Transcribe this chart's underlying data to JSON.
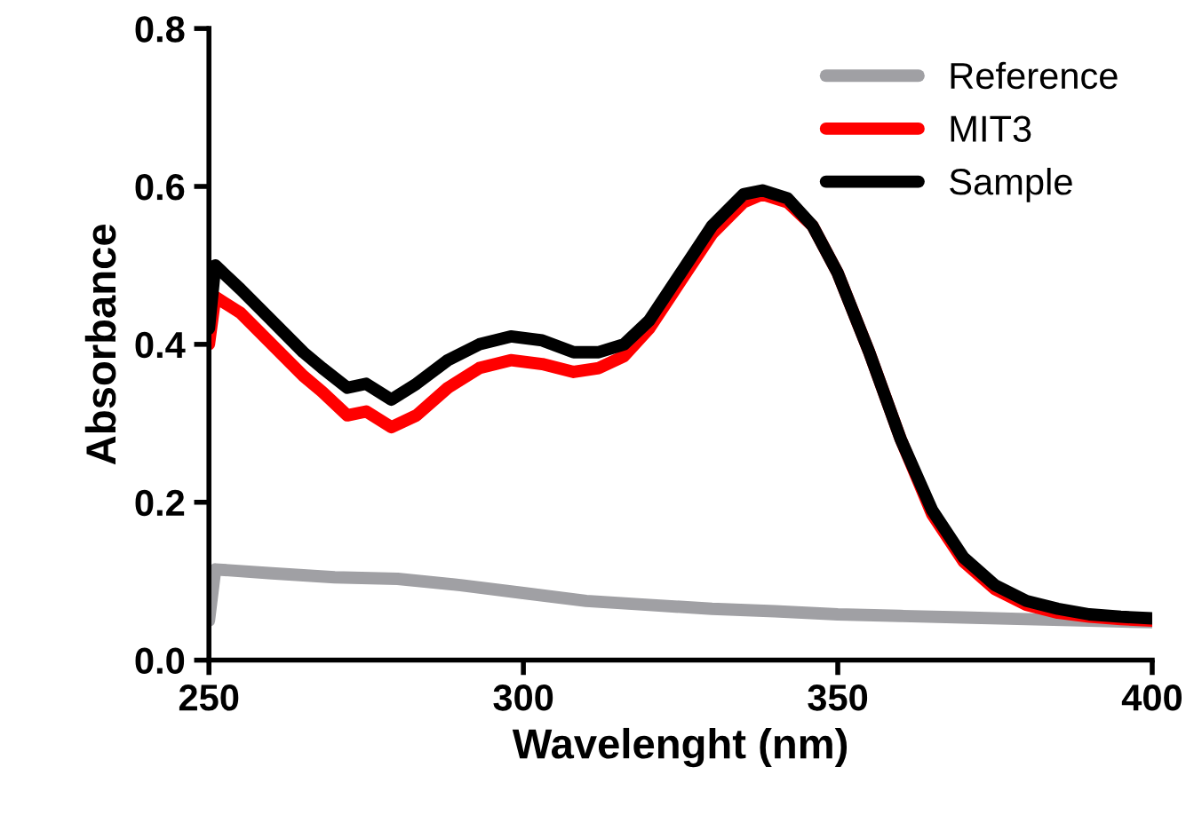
{
  "chart_data": {
    "type": "line",
    "xlabel": "Wavelenght (nm)",
    "ylabel": "Absorbance",
    "xlim": [
      250,
      400
    ],
    "ylim": [
      0,
      0.8
    ],
    "xticks": [
      250,
      300,
      350,
      400
    ],
    "yticks": [
      {
        "value": 0,
        "label": "0.0"
      },
      {
        "value": 0.2,
        "label": "0.2"
      },
      {
        "value": 0.4,
        "label": "0.4"
      },
      {
        "value": 0.6,
        "label": "0.6"
      },
      {
        "value": 0.8,
        "label": "0.8"
      }
    ],
    "grid": false,
    "legend": "top right",
    "marker": "none",
    "line_style": "solid",
    "series": [
      {
        "name": "Reference",
        "color": "#a0a0a4",
        "x": [
          250,
          251,
          260,
          270,
          280,
          290,
          300,
          310,
          320,
          330,
          340,
          350,
          360,
          370,
          380,
          390,
          400
        ],
        "values": [
          0.05,
          0.115,
          0.11,
          0.105,
          0.103,
          0.095,
          0.085,
          0.075,
          0.07,
          0.065,
          0.062,
          0.058,
          0.056,
          0.054,
          0.052,
          0.05,
          0.048
        ]
      },
      {
        "name": "MIT3",
        "color": "#ff0000",
        "x": [
          250,
          251,
          255,
          260,
          265,
          268,
          272,
          275,
          279,
          283,
          288,
          293,
          298,
          303,
          308,
          312,
          316,
          320,
          325,
          330,
          335,
          338,
          342,
          346,
          350,
          355,
          360,
          365,
          370,
          375,
          380,
          385,
          390,
          395,
          400
        ],
        "values": [
          0.4,
          0.46,
          0.44,
          0.4,
          0.36,
          0.34,
          0.31,
          0.315,
          0.295,
          0.31,
          0.345,
          0.37,
          0.38,
          0.375,
          0.365,
          0.37,
          0.385,
          0.42,
          0.48,
          0.54,
          0.58,
          0.59,
          0.58,
          0.55,
          0.49,
          0.39,
          0.28,
          0.185,
          0.125,
          0.09,
          0.07,
          0.06,
          0.055,
          0.052,
          0.05
        ]
      },
      {
        "name": "Sample",
        "color": "#000000",
        "x": [
          250,
          251,
          255,
          260,
          265,
          268,
          272,
          275,
          279,
          283,
          288,
          293,
          298,
          303,
          308,
          312,
          316,
          320,
          325,
          330,
          335,
          338,
          342,
          346,
          350,
          355,
          360,
          365,
          370,
          375,
          380,
          385,
          390,
          395,
          400
        ],
        "values": [
          0.42,
          0.5,
          0.47,
          0.43,
          0.39,
          0.37,
          0.345,
          0.35,
          0.33,
          0.35,
          0.38,
          0.4,
          0.41,
          0.405,
          0.39,
          0.39,
          0.4,
          0.43,
          0.49,
          0.55,
          0.59,
          0.595,
          0.585,
          0.55,
          0.49,
          0.39,
          0.28,
          0.19,
          0.13,
          0.095,
          0.075,
          0.065,
          0.058,
          0.055,
          0.053
        ]
      }
    ]
  }
}
